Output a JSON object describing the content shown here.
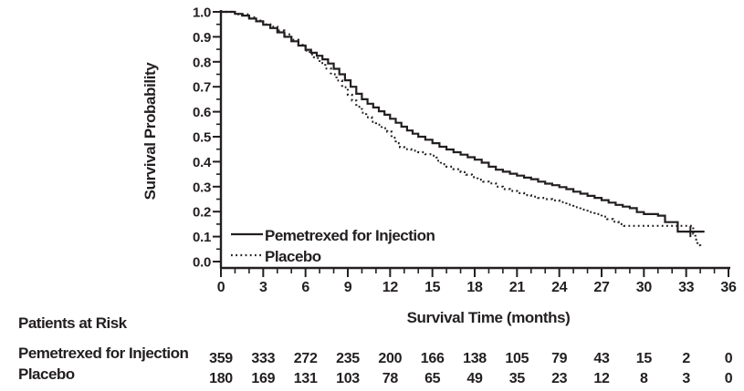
{
  "figure": {
    "bg": "#ffffff",
    "ink": "#231f20"
  },
  "chart_data": {
    "type": "line",
    "subtype": "kaplan-meier-step",
    "title": "",
    "xlabel": "Survival Time (months)",
    "ylabel": "Survival Probability",
    "xlim": [
      0,
      36
    ],
    "ylim": [
      0.0,
      1.0
    ],
    "grid": false,
    "legend_position": "inside-bottom-left",
    "x_ticks": [
      0,
      3,
      6,
      9,
      12,
      15,
      18,
      21,
      24,
      27,
      30,
      33,
      36
    ],
    "x_minor_step": 1,
    "y_ticks": [
      "1.0",
      "0.9",
      "0.8",
      "0.7",
      "0.6",
      "0.5",
      "0.4",
      "0.3",
      "0.2",
      "0.1",
      "0.0"
    ],
    "y_minor_step": 0.05,
    "series": [
      {
        "name": "Pemetrexed for Injection",
        "line_style": "solid",
        "color": "#231f20",
        "points": [
          [
            0,
            1.0
          ],
          [
            0.6,
            1.0
          ],
          [
            1,
            0.992
          ],
          [
            1.5,
            0.985
          ],
          [
            2,
            0.973
          ],
          [
            2.5,
            0.962
          ],
          [
            3,
            0.948
          ],
          [
            3.5,
            0.935
          ],
          [
            4,
            0.918
          ],
          [
            4.5,
            0.9
          ],
          [
            5,
            0.882
          ],
          [
            5.5,
            0.865
          ],
          [
            6,
            0.848
          ],
          [
            6.4,
            0.836
          ],
          [
            6.8,
            0.824
          ],
          [
            7.2,
            0.81
          ],
          [
            7.6,
            0.793
          ],
          [
            8,
            0.772
          ],
          [
            8.4,
            0.75
          ],
          [
            8.8,
            0.726
          ],
          [
            9.2,
            0.7
          ],
          [
            9.6,
            0.672
          ],
          [
            10,
            0.65
          ],
          [
            10.4,
            0.632
          ],
          [
            10.8,
            0.617
          ],
          [
            11.2,
            0.602
          ],
          [
            11.6,
            0.588
          ],
          [
            12,
            0.572
          ],
          [
            12.4,
            0.556
          ],
          [
            12.8,
            0.54
          ],
          [
            13.2,
            0.525
          ],
          [
            13.6,
            0.512
          ],
          [
            14,
            0.5
          ],
          [
            14.5,
            0.488
          ],
          [
            15,
            0.474
          ],
          [
            15.5,
            0.46
          ],
          [
            16,
            0.449
          ],
          [
            16.5,
            0.438
          ],
          [
            17,
            0.428
          ],
          [
            17.5,
            0.418
          ],
          [
            18,
            0.408
          ],
          [
            18.5,
            0.396
          ],
          [
            19,
            0.38
          ],
          [
            19.5,
            0.368
          ],
          [
            20,
            0.36
          ],
          [
            20.5,
            0.352
          ],
          [
            21,
            0.344
          ],
          [
            21.5,
            0.336
          ],
          [
            22,
            0.33
          ],
          [
            22.5,
            0.32
          ],
          [
            23,
            0.312
          ],
          [
            23.5,
            0.306
          ],
          [
            24,
            0.298
          ],
          [
            24.5,
            0.29
          ],
          [
            25,
            0.28
          ],
          [
            25.5,
            0.272
          ],
          [
            26,
            0.263
          ],
          [
            26.5,
            0.255
          ],
          [
            27,
            0.246
          ],
          [
            27.5,
            0.236
          ],
          [
            28,
            0.227
          ],
          [
            28.5,
            0.22
          ],
          [
            29,
            0.214
          ],
          [
            29.5,
            0.198
          ],
          [
            30,
            0.19
          ],
          [
            31,
            0.184
          ],
          [
            31.5,
            0.158
          ],
          [
            32.3,
            0.158
          ],
          [
            32.4,
            0.12
          ],
          [
            34.3,
            0.12
          ]
        ]
      },
      {
        "name": "Placebo",
        "line_style": "dotted",
        "color": "#231f20",
        "points": [
          [
            0,
            1.0
          ],
          [
            1,
            0.99
          ],
          [
            2,
            0.978
          ],
          [
            2.5,
            0.965
          ],
          [
            3,
            0.95
          ],
          [
            3.5,
            0.94
          ],
          [
            4,
            0.925
          ],
          [
            4.5,
            0.91
          ],
          [
            5,
            0.888
          ],
          [
            5.5,
            0.868
          ],
          [
            6,
            0.845
          ],
          [
            6.3,
            0.83
          ],
          [
            6.6,
            0.815
          ],
          [
            7,
            0.795
          ],
          [
            7.4,
            0.773
          ],
          [
            7.8,
            0.75
          ],
          [
            8.2,
            0.725
          ],
          [
            8.6,
            0.698
          ],
          [
            9,
            0.668
          ],
          [
            9.3,
            0.645
          ],
          [
            9.6,
            0.62
          ],
          [
            10,
            0.596
          ],
          [
            10.3,
            0.578
          ],
          [
            10.7,
            0.56
          ],
          [
            11,
            0.548
          ],
          [
            11.4,
            0.534
          ],
          [
            11.8,
            0.52
          ],
          [
            12.1,
            0.496
          ],
          [
            12.4,
            0.474
          ],
          [
            12.7,
            0.458
          ],
          [
            13,
            0.45
          ],
          [
            13.5,
            0.444
          ],
          [
            14,
            0.438
          ],
          [
            14.5,
            0.43
          ],
          [
            15,
            0.424
          ],
          [
            15.3,
            0.404
          ],
          [
            15.6,
            0.39
          ],
          [
            16,
            0.38
          ],
          [
            16.5,
            0.37
          ],
          [
            17,
            0.358
          ],
          [
            17.4,
            0.348
          ],
          [
            17.8,
            0.338
          ],
          [
            18.2,
            0.328
          ],
          [
            18.6,
            0.32
          ],
          [
            19,
            0.313
          ],
          [
            19.5,
            0.3
          ],
          [
            20,
            0.29
          ],
          [
            20.5,
            0.283
          ],
          [
            21,
            0.274
          ],
          [
            21.5,
            0.266
          ],
          [
            22,
            0.26
          ],
          [
            22.5,
            0.255
          ],
          [
            23,
            0.25
          ],
          [
            23.5,
            0.245
          ],
          [
            24,
            0.238
          ],
          [
            24.5,
            0.228
          ],
          [
            25,
            0.218
          ],
          [
            25.5,
            0.208
          ],
          [
            26,
            0.198
          ],
          [
            26.5,
            0.19
          ],
          [
            27,
            0.18
          ],
          [
            27.4,
            0.17
          ],
          [
            27.8,
            0.16
          ],
          [
            28.2,
            0.15
          ],
          [
            28.6,
            0.143
          ],
          [
            33.4,
            0.143
          ],
          [
            33.5,
            0.112
          ],
          [
            33.65,
            0.088
          ],
          [
            33.8,
            0.065
          ],
          [
            34,
            0.06
          ]
        ]
      }
    ],
    "censor_marks": [
      {
        "series": "Pemetrexed for Injection",
        "x": 33.3,
        "y": 0.12
      }
    ]
  },
  "legend": {
    "items": [
      {
        "label": "Pemetrexed for Injection",
        "line_style": "solid"
      },
      {
        "label": "Placebo",
        "line_style": "dotted"
      }
    ]
  },
  "risk_table": {
    "title": "Patients at Risk",
    "time_points": [
      0,
      3,
      6,
      9,
      12,
      15,
      18,
      21,
      24,
      27,
      30,
      33,
      36
    ],
    "rows": [
      {
        "label": "Pemetrexed for Injection",
        "counts": [
          359,
          333,
          272,
          235,
          200,
          166,
          138,
          105,
          79,
          43,
          15,
          2,
          0
        ]
      },
      {
        "label": "Placebo",
        "counts": [
          180,
          169,
          131,
          103,
          78,
          65,
          49,
          35,
          23,
          12,
          8,
          3,
          0
        ]
      }
    ]
  }
}
